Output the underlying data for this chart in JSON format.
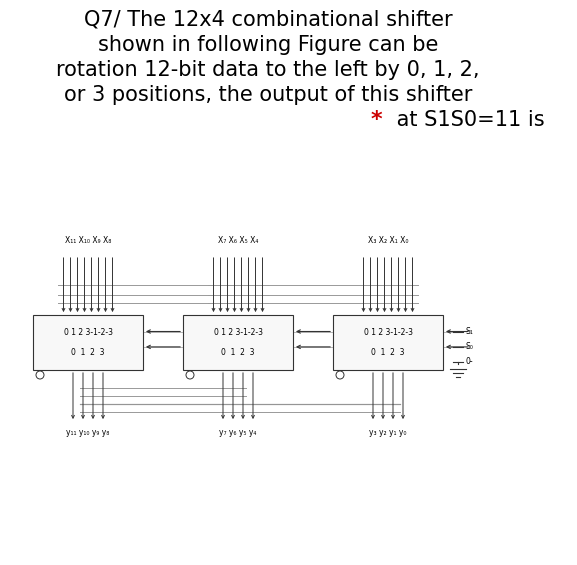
{
  "title_lines": [
    "Q7/ The 12x4 combinational shifter",
    "shown in following Figure can be",
    "rotation 12-bit data to the left by 0, 1, 2,",
    "or 3 positions, the output of this shifter"
  ],
  "star_line": " at S1S0=11 is",
  "star_color": "#cc0000",
  "figure_bg": "#ffffff",
  "line_color": "#333333",
  "gray_color": "#999999",
  "box_text1": "0 1 2 3-1-2-3",
  "box_text2": "0  1  2  3",
  "top_labels": [
    "X₁₁ X₁₀ X₉ X₈",
    "X₇ X₆ X₅ X₄",
    "X₃ X₂ X₁ X₀"
  ],
  "bottom_labels": [
    "y₁₁ y₁₀ y₉ y₈",
    "y₇ y₆ y₅ y₄",
    "y₃ y₂ y₁ y₀"
  ],
  "s_labels": [
    "S₁",
    "S₀",
    "0-"
  ],
  "font_size_title": 15,
  "font_size_diagram": 5.5
}
